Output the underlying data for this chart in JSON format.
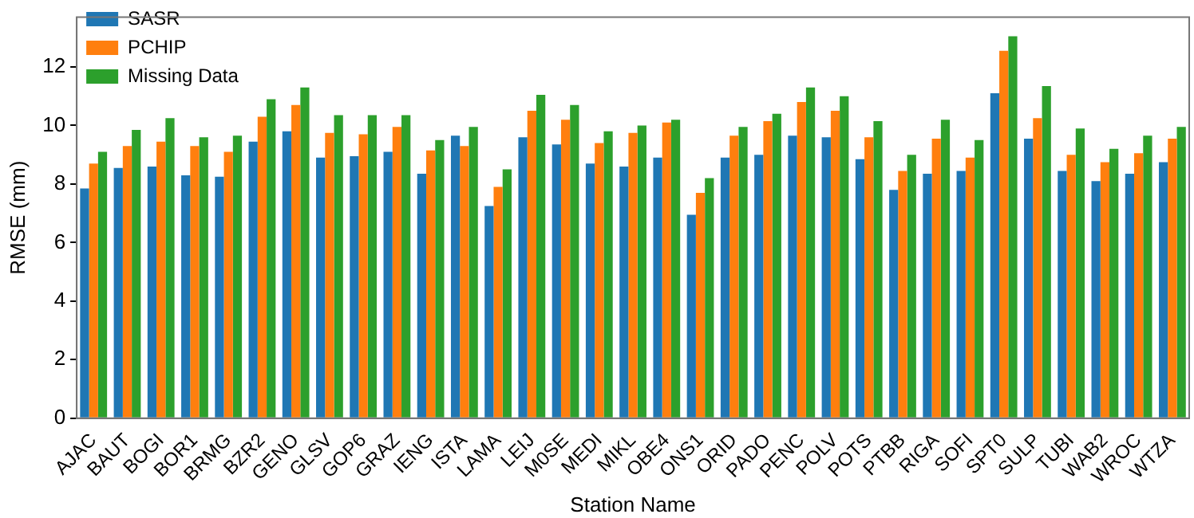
{
  "chart_data": {
    "type": "bar",
    "xlabel": "Station Name",
    "ylabel": "RMSE (mm)",
    "categories": [
      "AJAC",
      "BAUT",
      "BOGI",
      "BOR1",
      "BRMG",
      "BZR2",
      "GENO",
      "GLSV",
      "GOP6",
      "GRAZ",
      "IENG",
      "ISTA",
      "LAMA",
      "LEIJ",
      "M0SE",
      "MEDI",
      "MIKL",
      "OBE4",
      "ONS1",
      "ORID",
      "PADO",
      "PENC",
      "POLV",
      "POTS",
      "PTBB",
      "RIGA",
      "SOFI",
      "SPT0",
      "SULP",
      "TUBI",
      "WAB2",
      "WROC",
      "WTZA"
    ],
    "series": [
      {
        "name": "SASR",
        "color": "#1f77b4",
        "values": [
          7.85,
          8.55,
          8.6,
          8.3,
          8.25,
          9.45,
          9.8,
          8.9,
          8.95,
          9.1,
          8.35,
          9.65,
          7.25,
          9.6,
          9.35,
          8.7,
          8.6,
          8.9,
          6.95,
          8.9,
          9.0,
          9.65,
          9.6,
          8.85,
          7.8,
          8.35,
          8.45,
          11.1,
          9.55,
          8.45,
          8.1,
          8.35,
          8.75
        ]
      },
      {
        "name": "PCHIP",
        "color": "#ff7f0e",
        "values": [
          8.7,
          9.3,
          9.45,
          9.3,
          9.1,
          10.3,
          10.7,
          9.75,
          9.7,
          9.95,
          9.15,
          9.3,
          7.9,
          10.5,
          10.2,
          9.4,
          9.75,
          10.1,
          7.7,
          9.65,
          10.15,
          10.8,
          10.5,
          9.6,
          8.45,
          9.55,
          8.9,
          12.55,
          10.25,
          9.0,
          8.75,
          9.05,
          9.55
        ]
      },
      {
        "name": "Missing Data",
        "color": "#2ca02c",
        "values": [
          9.1,
          9.85,
          10.25,
          9.6,
          9.65,
          10.9,
          11.3,
          10.35,
          10.35,
          10.35,
          9.5,
          9.95,
          8.5,
          11.05,
          10.7,
          9.8,
          10.0,
          10.2,
          8.2,
          9.95,
          10.4,
          11.3,
          11.0,
          10.15,
          9.0,
          10.2,
          9.5,
          13.05,
          11.35,
          9.9,
          9.2,
          9.65,
          9.95
        ]
      }
    ],
    "ylim": [
      0,
      13.7
    ],
    "yticks": [
      0,
      2,
      4,
      6,
      8,
      10,
      12
    ],
    "grid": false,
    "legend": "top left"
  }
}
